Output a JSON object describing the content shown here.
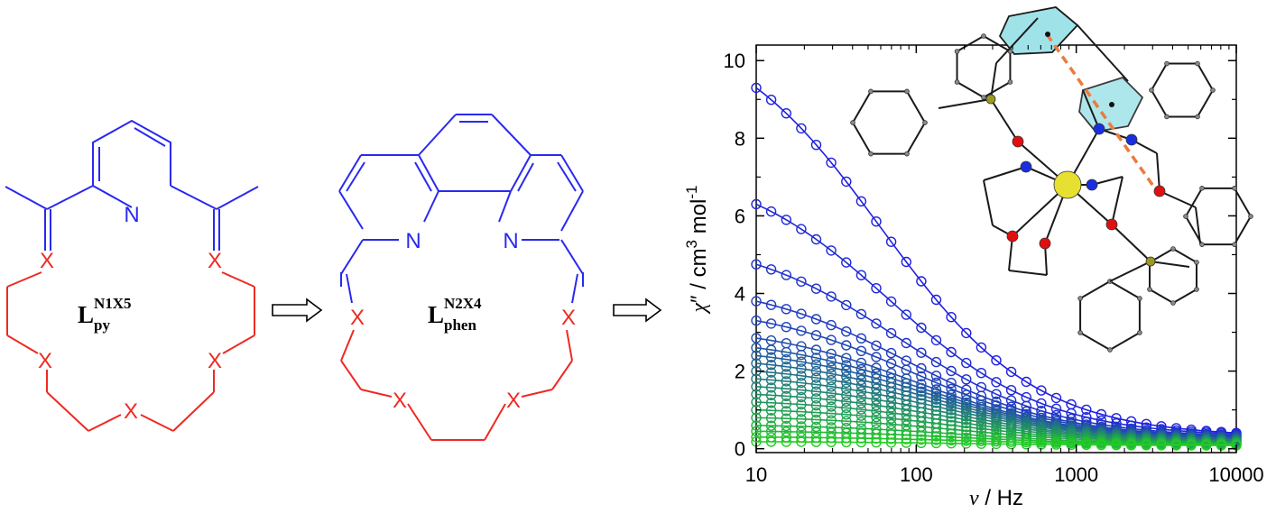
{
  "colors": {
    "ring_blue": "#2929f0",
    "chain_red": "#ee2a22",
    "arrow_black": "#000000",
    "data_blue": "#2020e0",
    "data_green": "#22cc22",
    "pi_ring_cyan": "#9fe3e8",
    "pi_line_orange": "#ec7b3d",
    "metal_yellow": "#e8e030",
    "phosphorus_olive": "#9a9a20",
    "oxygen_red": "#e01010",
    "nitrogen_blue": "#1a2ee0"
  },
  "ligand1": {
    "name_main": "L",
    "name_sup": "N1X5",
    "name_sub": "py",
    "atom_n": "N",
    "atom_x": [
      "X",
      "X",
      "X",
      "X",
      "X"
    ]
  },
  "ligand2": {
    "name_main": "L",
    "name_sup": "N2X4",
    "name_sub": "phen",
    "atom_n": [
      "N",
      "N"
    ],
    "atom_x": [
      "X",
      "X",
      "X",
      "X"
    ]
  },
  "chart_data": {
    "type": "scatter",
    "x_scale": "log",
    "xlabel_symbol": "ν",
    "xlabel_unit": " / Hz",
    "ylabel": "χ ″ / cm³ mol⁻¹",
    "ylabel_parts": {
      "chi": "χ",
      "prime": "″",
      "unit": " / cm",
      "exp3": "3",
      "mol": " mol",
      "expm1": "-1"
    },
    "xlim": [
      10,
      10000
    ],
    "ylim": [
      -0.1,
      10.4
    ],
    "x_ticks": [
      10,
      100,
      1000,
      10000
    ],
    "x_tick_labels": [
      "10",
      "100",
      "1000",
      "10000"
    ],
    "y_ticks": [
      0,
      2,
      4,
      6,
      8,
      10
    ],
    "y_tick_labels": [
      "0",
      "2",
      "4",
      "6",
      "8",
      "10"
    ],
    "marker": "open circle",
    "fit": "solid line",
    "curve_family": "generalized Debye relaxation, blue (high) to green (low)",
    "series_peaks_at_10Hz": [
      9.3,
      6.3,
      4.75,
      3.8,
      3.3,
      2.85,
      2.6,
      2.4,
      2.2,
      2.0,
      1.8,
      1.6,
      1.4,
      1.2,
      1.0,
      0.8,
      0.6,
      0.45,
      0.3,
      0.18
    ],
    "series_high_freq_value_at_10000Hz": [
      0.3,
      0.3,
      0.28,
      0.27,
      0.26,
      0.25,
      0.24,
      0.22,
      0.2,
      0.19,
      0.18,
      0.16,
      0.15,
      0.14,
      0.13,
      0.12,
      0.11,
      0.1,
      0.1,
      0.08
    ]
  }
}
